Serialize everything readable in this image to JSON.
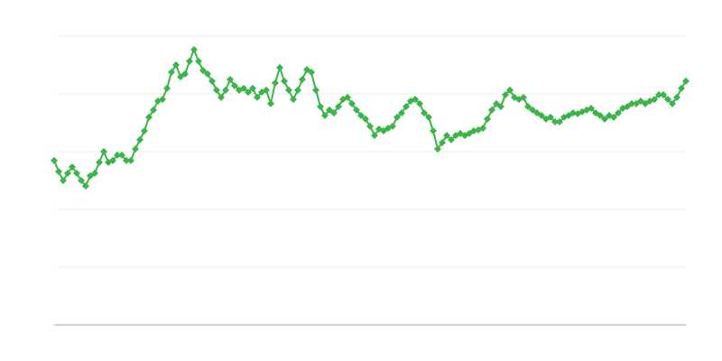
{
  "chart_data": {
    "type": "line",
    "color": "#3bb54a",
    "marker": "diamond",
    "ylim": [
      0,
      100
    ],
    "gridlines": [
      0,
      20,
      40,
      60,
      80,
      100
    ],
    "grid": true,
    "values": [
      56.9,
      53.1,
      50,
      52.5,
      54.7,
      52.5,
      50,
      48.1,
      51.6,
      52.5,
      56.3,
      60,
      56.3,
      56.9,
      58.8,
      58.8,
      56.9,
      56.9,
      60.9,
      64.1,
      67.2,
      71.9,
      74.4,
      77.5,
      78.1,
      81.9,
      87.5,
      90,
      85.9,
      86.9,
      91.3,
      95.3,
      91.3,
      88.1,
      86.9,
      84.4,
      81.3,
      78.8,
      81.3,
      85,
      82.8,
      81.3,
      81.9,
      80.6,
      81.9,
      78.8,
      80.6,
      81.3,
      76.6,
      83.8,
      89.1,
      84.4,
      81.3,
      78.1,
      81.3,
      85,
      88.4,
      87.5,
      81.3,
      75.6,
      72.5,
      74.4,
      73.4,
      75.6,
      78.1,
      78.8,
      76.6,
      74.4,
      72.5,
      71.3,
      68.8,
      65.6,
      67.8,
      67.2,
      68.1,
      68.8,
      71.9,
      73.4,
      75.6,
      77.5,
      78.1,
      76.6,
      73.4,
      71.9,
      67.2,
      60.9,
      63.1,
      65.6,
      64.1,
      65.6,
      66.3,
      65.6,
      66.3,
      67.2,
      67.5,
      68.1,
      71.3,
      74.4,
      76.6,
      75.6,
      79.7,
      81.3,
      78.8,
      78.1,
      78.8,
      75.6,
      74.4,
      73.4,
      72.5,
      71.3,
      71.9,
      70.3,
      70.3,
      71.9,
      72.5,
      73.4,
      73.1,
      73.8,
      74.4,
      75,
      73.4,
      72.5,
      71.3,
      72.5,
      71.9,
      73.4,
      75,
      75.6,
      76.6,
      76.6,
      77.5,
      76.6,
      77.5,
      78.1,
      79.7,
      79.7,
      78.1,
      76.6,
      78.8,
      81.9,
      84.4
    ]
  }
}
